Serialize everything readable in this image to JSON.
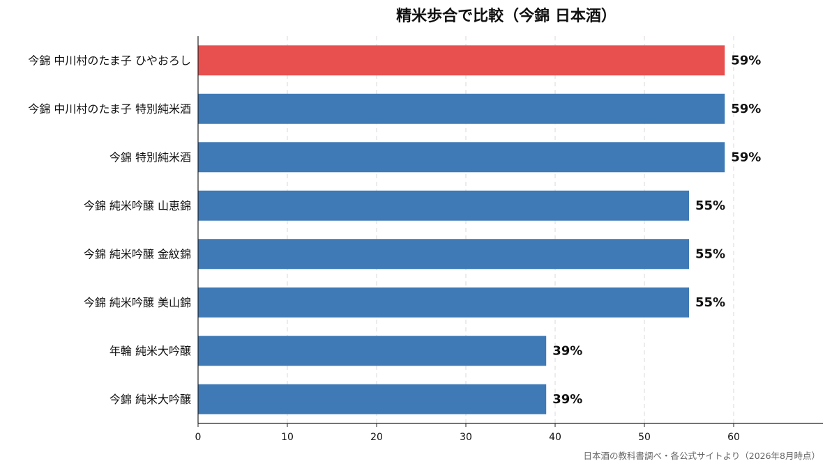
{
  "chart_data": {
    "type": "bar",
    "orientation": "horizontal",
    "title": "精米歩合で比較（今錦 日本酒）",
    "xlabel": "",
    "ylabel": "",
    "xlim": [
      0,
      70
    ],
    "xticks": [
      0,
      10,
      20,
      30,
      40,
      50,
      60
    ],
    "grid": "vertical-dashed",
    "categories": [
      "今錦 中川村のたま子 ひやおろし",
      "今錦 中川村のたま子 特別純米酒",
      "今錦 特別純米酒",
      "今錦 純米吟醸 山恵錦",
      "今錦 純米吟醸 金紋錦",
      "今錦 純米吟醸 美山錦",
      "年輪 純米大吟醸",
      "今錦 純米大吟醸"
    ],
    "values": [
      59,
      59,
      59,
      55,
      55,
      55,
      39,
      39
    ],
    "value_labels": [
      "59%",
      "59%",
      "59%",
      "55%",
      "55%",
      "55%",
      "39%",
      "39%"
    ],
    "colors": [
      "#e85050",
      "#3f7ab6",
      "#3f7ab6",
      "#3f7ab6",
      "#3f7ab6",
      "#3f7ab6",
      "#3f7ab6",
      "#3f7ab6"
    ]
  },
  "footer": "日本酒の教科書調べ・各公式サイトより（2026年8月時点）"
}
